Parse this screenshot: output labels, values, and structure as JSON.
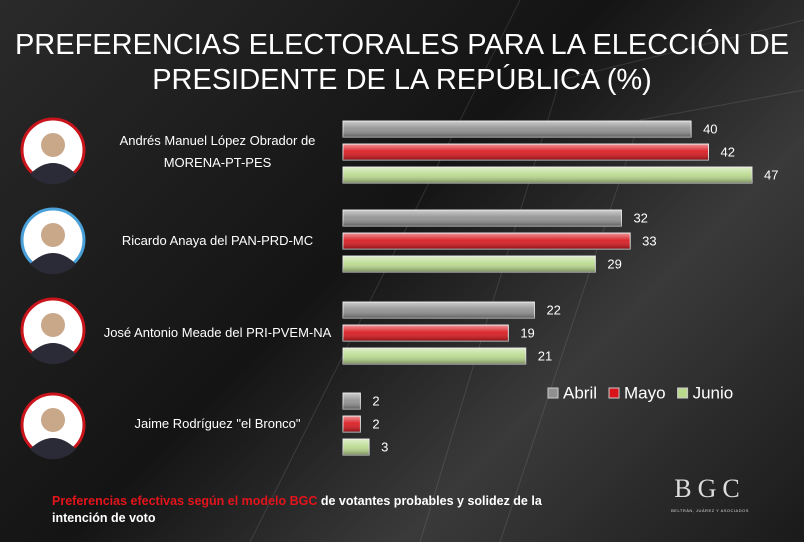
{
  "chart_data": {
    "type": "bar",
    "orientation": "horizontal",
    "title": [
      "PREFERENCIAS ELECTORALES PARA LA ELECCIÓN DE",
      "PRESIDENTE DE LA REPÚBLICA (%)"
    ],
    "categories": [
      "Andrés Manuel López Obrador de MORENA-PT-PES",
      "Ricardo Anaya del PAN-PRD-MC",
      "José Antonio Meade del PRI-PVEM-NA",
      "Jaime Rodríguez \"el Bronco\""
    ],
    "series": [
      {
        "name": "Abril",
        "color": "#8f8f8f",
        "values": [
          40,
          32,
          22,
          2
        ]
      },
      {
        "name": "Mayo",
        "color": "#d8141a",
        "values": [
          42,
          33,
          19,
          2
        ]
      },
      {
        "name": "Junio",
        "color": "#b9da8c",
        "values": [
          47,
          29,
          21,
          3
        ]
      }
    ],
    "xlim": [
      0,
      47
    ],
    "legend": "right",
    "footnote": {
      "highlight": "Preferencias efectivas según el modelo BGC",
      "rest": "de votantes probables y solidez de la intención de voto"
    },
    "logo": {
      "mark": "BGC",
      "caption": "BELTRÁN, JUÁREZ Y ASOCIADOS"
    }
  }
}
